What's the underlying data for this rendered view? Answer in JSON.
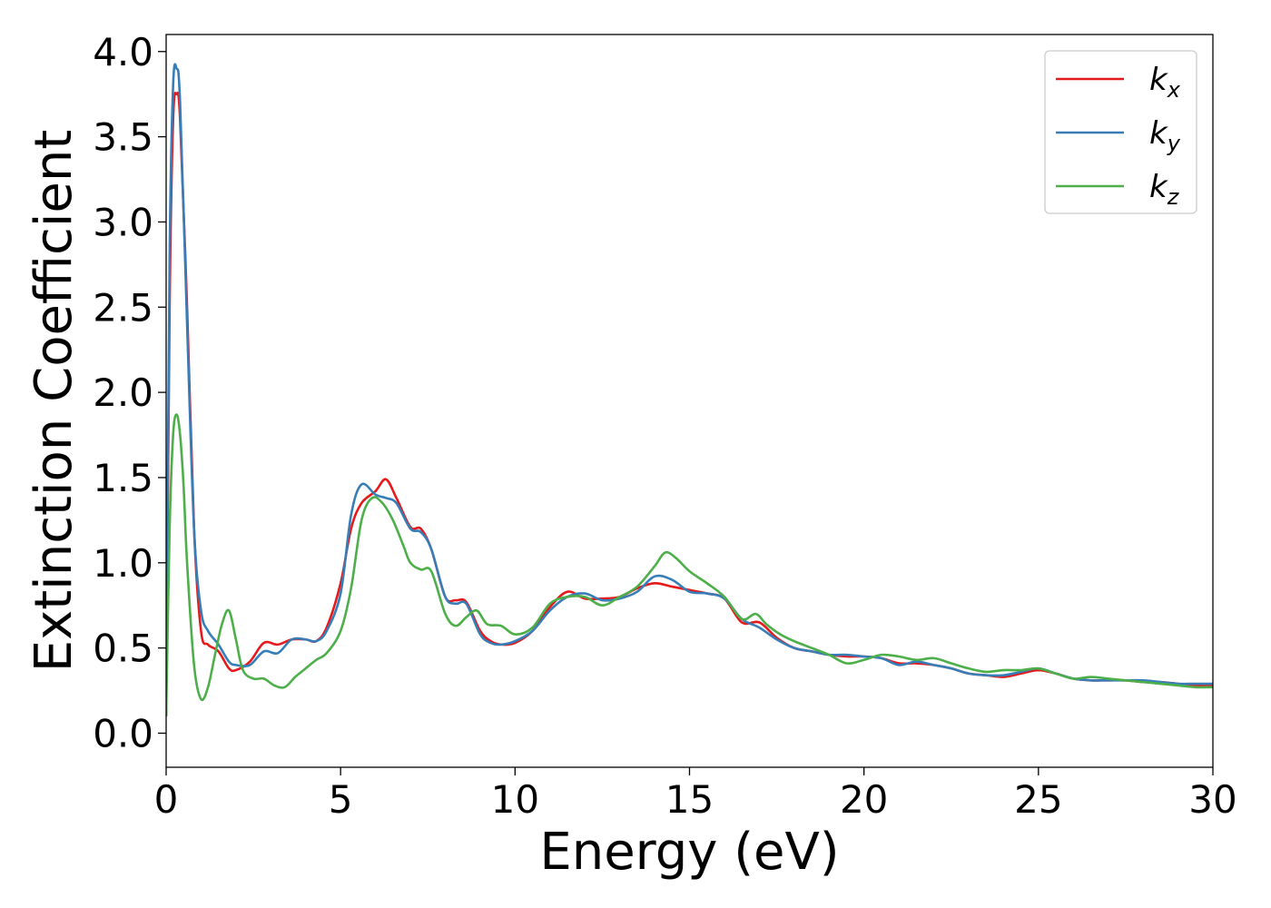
{
  "chart_data": {
    "type": "line",
    "title": "",
    "xlabel": "Energy (eV)",
    "ylabel": "Extinction Coefficient",
    "xlim": [
      0,
      30
    ],
    "ylim": [
      -0.2,
      4.1
    ],
    "xticks": [
      0,
      5,
      10,
      15,
      20,
      25,
      30
    ],
    "xtick_labels": [
      "0",
      "5",
      "10",
      "15",
      "20",
      "25",
      "30"
    ],
    "yticks": [
      0.0,
      0.5,
      1.0,
      1.5,
      2.0,
      2.5,
      3.0,
      3.5,
      4.0
    ],
    "ytick_labels": [
      "0.0",
      "0.5",
      "1.0",
      "1.5",
      "2.0",
      "2.5",
      "3.0",
      "3.5",
      "4.0"
    ],
    "grid": false,
    "legend_position": "top-right",
    "series": [
      {
        "name": "k_x",
        "label_base": "k",
        "label_sub": "x",
        "color": "#e41a1c",
        "x": [
          0,
          0.1,
          0.2,
          0.3,
          0.4,
          0.6,
          0.8,
          1.0,
          1.2,
          1.5,
          1.8,
          2.0,
          2.4,
          2.8,
          3.2,
          3.6,
          4.0,
          4.3,
          4.6,
          5.0,
          5.3,
          5.6,
          6.0,
          6.3,
          6.6,
          7.0,
          7.3,
          7.6,
          8.0,
          8.3,
          8.6,
          9.0,
          9.3,
          9.6,
          10.0,
          10.5,
          11.0,
          11.5,
          12.0,
          12.5,
          13.0,
          13.5,
          14.0,
          14.5,
          15.0,
          15.5,
          16.0,
          16.5,
          17.0,
          17.5,
          18.0,
          18.5,
          19.0,
          19.5,
          20.0,
          20.5,
          21.0,
          21.5,
          22.0,
          22.5,
          23.0,
          23.5,
          24.0,
          24.5,
          25.0,
          25.5,
          26.0,
          26.5,
          27.0,
          27.5,
          28.0,
          28.5,
          29.0,
          29.5,
          30.0
        ],
        "y": [
          0.1,
          2.5,
          3.6,
          3.75,
          3.6,
          2.5,
          1.2,
          0.6,
          0.52,
          0.48,
          0.38,
          0.37,
          0.42,
          0.53,
          0.52,
          0.55,
          0.55,
          0.54,
          0.62,
          0.88,
          1.2,
          1.35,
          1.42,
          1.49,
          1.38,
          1.21,
          1.2,
          1.08,
          0.8,
          0.78,
          0.77,
          0.6,
          0.54,
          0.52,
          0.53,
          0.6,
          0.74,
          0.83,
          0.79,
          0.79,
          0.8,
          0.85,
          0.88,
          0.86,
          0.84,
          0.82,
          0.79,
          0.65,
          0.65,
          0.56,
          0.5,
          0.48,
          0.46,
          0.45,
          0.45,
          0.44,
          0.41,
          0.41,
          0.4,
          0.38,
          0.35,
          0.34,
          0.33,
          0.35,
          0.37,
          0.35,
          0.32,
          0.31,
          0.31,
          0.31,
          0.3,
          0.3,
          0.29,
          0.28,
          0.28
        ]
      },
      {
        "name": "k_y",
        "label_base": "k",
        "label_sub": "y",
        "color": "#377eb8",
        "x": [
          0,
          0.1,
          0.2,
          0.3,
          0.4,
          0.6,
          0.8,
          1.0,
          1.2,
          1.5,
          1.8,
          2.0,
          2.4,
          2.8,
          3.2,
          3.6,
          4.0,
          4.3,
          4.6,
          5.0,
          5.3,
          5.6,
          6.0,
          6.3,
          6.6,
          7.0,
          7.3,
          7.6,
          8.0,
          8.3,
          8.6,
          9.0,
          9.3,
          9.6,
          10.0,
          10.5,
          11.0,
          11.5,
          12.0,
          12.5,
          13.0,
          13.5,
          14.0,
          14.5,
          15.0,
          15.5,
          16.0,
          16.5,
          17.0,
          17.5,
          18.0,
          18.5,
          19.0,
          19.5,
          20.0,
          20.5,
          21.0,
          21.5,
          22.0,
          22.5,
          23.0,
          23.5,
          24.0,
          24.5,
          25.0,
          25.5,
          26.0,
          26.5,
          27.0,
          27.5,
          28.0,
          28.5,
          29.0,
          29.5,
          30.0
        ],
        "y": [
          0.1,
          2.8,
          3.8,
          3.9,
          3.7,
          2.4,
          1.2,
          0.72,
          0.6,
          0.52,
          0.42,
          0.4,
          0.4,
          0.48,
          0.47,
          0.55,
          0.55,
          0.54,
          0.6,
          0.82,
          1.28,
          1.46,
          1.4,
          1.38,
          1.35,
          1.2,
          1.18,
          1.08,
          0.8,
          0.76,
          0.76,
          0.58,
          0.53,
          0.52,
          0.54,
          0.6,
          0.72,
          0.8,
          0.82,
          0.78,
          0.79,
          0.83,
          0.92,
          0.9,
          0.83,
          0.82,
          0.79,
          0.67,
          0.62,
          0.55,
          0.5,
          0.48,
          0.46,
          0.46,
          0.45,
          0.44,
          0.4,
          0.42,
          0.4,
          0.38,
          0.35,
          0.34,
          0.34,
          0.36,
          0.38,
          0.35,
          0.32,
          0.31,
          0.31,
          0.31,
          0.31,
          0.3,
          0.29,
          0.29,
          0.29
        ]
      },
      {
        "name": "k_z",
        "label_base": "k",
        "label_sub": "z",
        "color": "#4daf4a",
        "x": [
          0,
          0.1,
          0.2,
          0.3,
          0.4,
          0.5,
          0.6,
          0.8,
          1.0,
          1.2,
          1.4,
          1.6,
          1.8,
          2.0,
          2.2,
          2.5,
          2.8,
          3.1,
          3.4,
          3.7,
          4.0,
          4.3,
          4.6,
          5.0,
          5.3,
          5.6,
          5.9,
          6.2,
          6.5,
          6.8,
          7.0,
          7.3,
          7.6,
          8.0,
          8.3,
          8.6,
          8.9,
          9.2,
          9.6,
          10.0,
          10.5,
          11.0,
          11.5,
          12.0,
          12.5,
          13.0,
          13.5,
          14.0,
          14.3,
          14.6,
          15.0,
          15.5,
          16.0,
          16.5,
          16.9,
          17.2,
          17.6,
          18.0,
          18.5,
          19.0,
          19.5,
          20.0,
          20.5,
          21.0,
          21.5,
          22.0,
          22.5,
          23.0,
          23.5,
          24.0,
          24.5,
          25.0,
          25.5,
          26.0,
          26.5,
          27.0,
          27.5,
          28.0,
          28.5,
          29.0,
          29.5,
          30.0
        ],
        "y": [
          0.1,
          1.2,
          1.75,
          1.87,
          1.75,
          1.45,
          1.0,
          0.4,
          0.2,
          0.27,
          0.46,
          0.64,
          0.72,
          0.55,
          0.37,
          0.32,
          0.32,
          0.28,
          0.27,
          0.33,
          0.38,
          0.43,
          0.47,
          0.6,
          0.85,
          1.25,
          1.38,
          1.35,
          1.25,
          1.1,
          1.0,
          0.96,
          0.95,
          0.7,
          0.63,
          0.68,
          0.72,
          0.64,
          0.63,
          0.58,
          0.62,
          0.76,
          0.8,
          0.8,
          0.75,
          0.8,
          0.86,
          0.98,
          1.06,
          1.03,
          0.95,
          0.88,
          0.8,
          0.67,
          0.7,
          0.64,
          0.58,
          0.54,
          0.5,
          0.46,
          0.41,
          0.43,
          0.46,
          0.45,
          0.43,
          0.44,
          0.41,
          0.38,
          0.36,
          0.37,
          0.37,
          0.38,
          0.35,
          0.32,
          0.33,
          0.32,
          0.31,
          0.3,
          0.29,
          0.28,
          0.27,
          0.27
        ]
      }
    ]
  }
}
